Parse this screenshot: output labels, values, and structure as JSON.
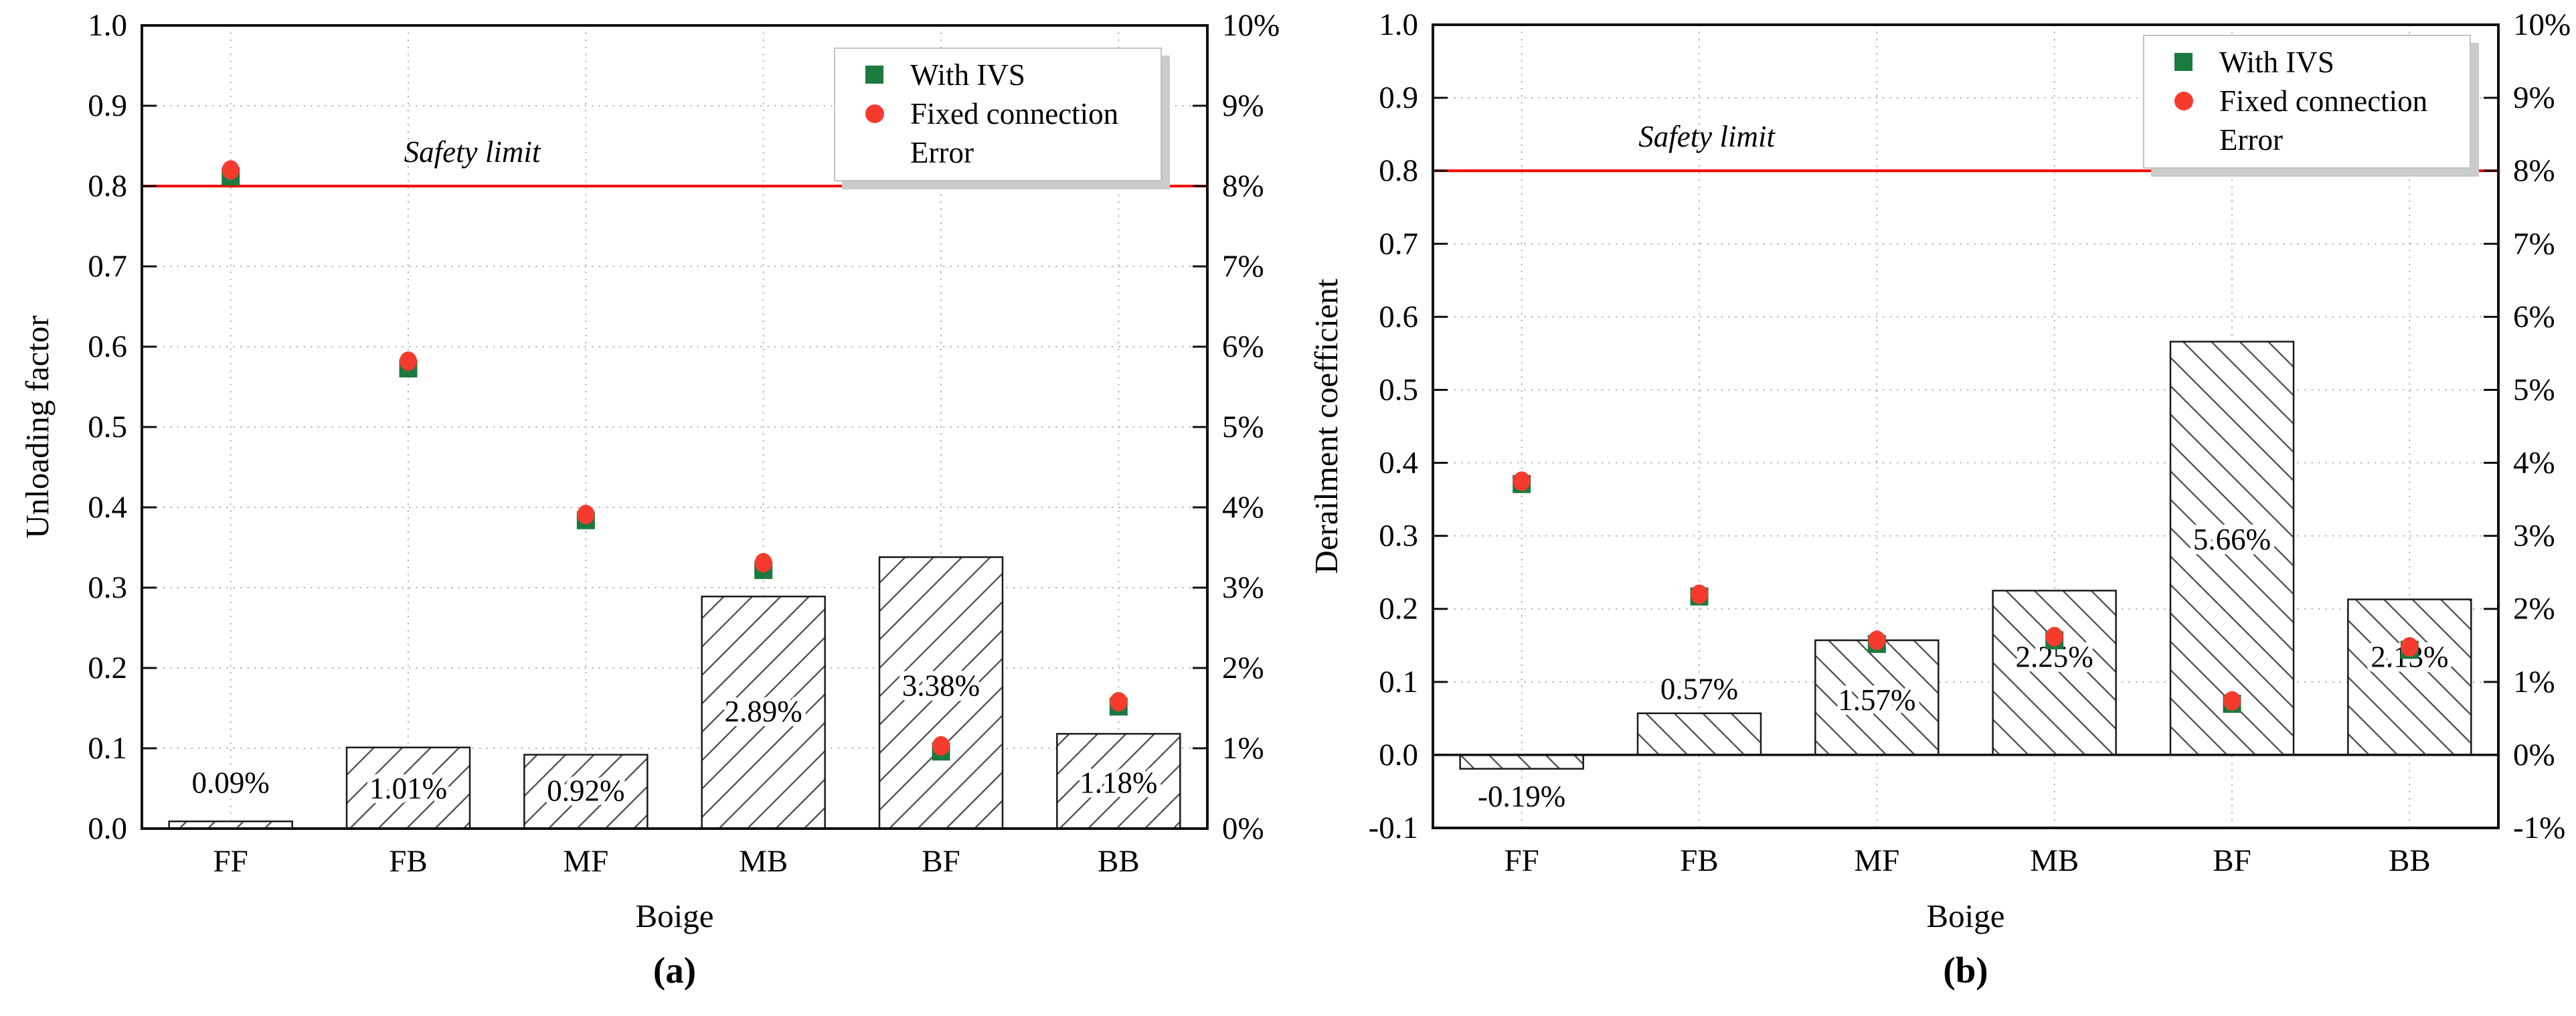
{
  "colors": {
    "with_ivs_green": "#1a7a3f",
    "fixed_connection_red": "#f63b2e",
    "safety_line_red": "#fe0000",
    "grid_gray": "#b8b8b8",
    "hatch_gray": "#4a4a4a",
    "axis_black": "#111111",
    "legend_border": "#c2c2c2",
    "legend_shadow": "#cbcbcb"
  },
  "chart_data": [
    {
      "type": "bar",
      "panel_caption": "(a)",
      "xlabel": "Boige",
      "ylabel_left": "Unloading factor",
      "categories": [
        "FF",
        "FB",
        "MF",
        "MB",
        "BF",
        "BB"
      ],
      "y_left": {
        "min": 0.0,
        "max": 1.0,
        "step": 0.1,
        "tick_labels": [
          "1.0",
          "0.9",
          "0.8",
          "0.7",
          "0.6",
          "0.5",
          "0.4",
          "0.3",
          "0.2",
          "0.1",
          "0.0"
        ]
      },
      "y_right": {
        "min": 0,
        "max": 10,
        "tick_labels": [
          "10%",
          "9%",
          "8%",
          "7%",
          "6%",
          "5%",
          "4%",
          "3%",
          "2%",
          "1%",
          "0%"
        ]
      },
      "safety_line": {
        "label": "Safety limit",
        "value": 0.8
      },
      "series": [
        {
          "name": "With IVS",
          "plot": "scatter",
          "marker": "square",
          "color": "with_ivs_green",
          "axis": "left",
          "values": [
            0.812,
            0.573,
            0.384,
            0.322,
            0.096,
            0.152
          ]
        },
        {
          "name": "Fixed connection",
          "plot": "scatter",
          "marker": "circle",
          "color": "fixed_connection_red",
          "axis": "left",
          "values": [
            0.82,
            0.582,
            0.391,
            0.331,
            0.103,
            0.158
          ]
        },
        {
          "name": "Error",
          "plot": "bar",
          "axis": "right",
          "hatch": "forward",
          "values_pct": [
            0.09,
            1.01,
            0.92,
            2.89,
            3.38,
            1.18
          ],
          "bar_labels": [
            "0.09%",
            "1.01%",
            "0.92%",
            "2.89%",
            "3.38%",
            "1.18%"
          ],
          "bar_label_y": [
            0.057,
            0.05,
            0.047,
            0.146,
            0.178,
            0.057
          ]
        }
      ],
      "legend": [
        {
          "label": "With IVS",
          "marker": "square",
          "color": "with_ivs_green"
        },
        {
          "label": "Fixed connection",
          "marker": "circle",
          "color": "fixed_connection_red"
        },
        {
          "label": "Error",
          "marker": "none",
          "color": ""
        }
      ]
    },
    {
      "type": "bar",
      "panel_caption": "(b)",
      "xlabel": "Boige",
      "ylabel_left": "Derailment coefficient",
      "categories": [
        "FF",
        "FB",
        "MF",
        "MB",
        "BF",
        "BB"
      ],
      "y_left": {
        "min": -0.1,
        "max": 1.0,
        "step": 0.1,
        "tick_labels": [
          "1.0",
          "0.9",
          "0.8",
          "0.7",
          "0.6",
          "0.5",
          "0.4",
          "0.3",
          "0.2",
          "0.1",
          "0.0",
          "-0.1"
        ]
      },
      "y_right": {
        "min": -1,
        "max": 10,
        "tick_labels": [
          "10%",
          "9%",
          "8%",
          "7%",
          "6%",
          "5%",
          "4%",
          "3%",
          "2%",
          "1%",
          "0%",
          "-1%"
        ]
      },
      "safety_line": {
        "label": "Safety limit",
        "value": 0.8
      },
      "series": [
        {
          "name": "With IVS",
          "plot": "scatter",
          "marker": "square",
          "color": "with_ivs_green",
          "axis": "left",
          "values": [
            0.371,
            0.217,
            0.152,
            0.157,
            0.07,
            0.144
          ]
        },
        {
          "name": "Fixed connection",
          "plot": "scatter",
          "marker": "circle",
          "color": "fixed_connection_red",
          "axis": "left",
          "values": [
            0.375,
            0.22,
            0.157,
            0.162,
            0.074,
            0.148
          ]
        },
        {
          "name": "Error",
          "plot": "bar",
          "axis": "right",
          "hatch": "back",
          "values_pct": [
            -0.19,
            0.57,
            1.57,
            2.25,
            5.66,
            2.13
          ],
          "bar_labels": [
            "-0.19%",
            "0.57%",
            "1.57%",
            "2.25%",
            "5.66%",
            "2.13%"
          ],
          "bar_label_y": [
            -0.057,
            0.09,
            0.075,
            0.134,
            0.295,
            0.134
          ]
        }
      ],
      "legend": [
        {
          "label": "With IVS",
          "marker": "square",
          "color": "with_ivs_green"
        },
        {
          "label": "Fixed connection",
          "marker": "circle",
          "color": "fixed_connection_red"
        },
        {
          "label": "Error",
          "marker": "none",
          "color": ""
        }
      ]
    }
  ]
}
